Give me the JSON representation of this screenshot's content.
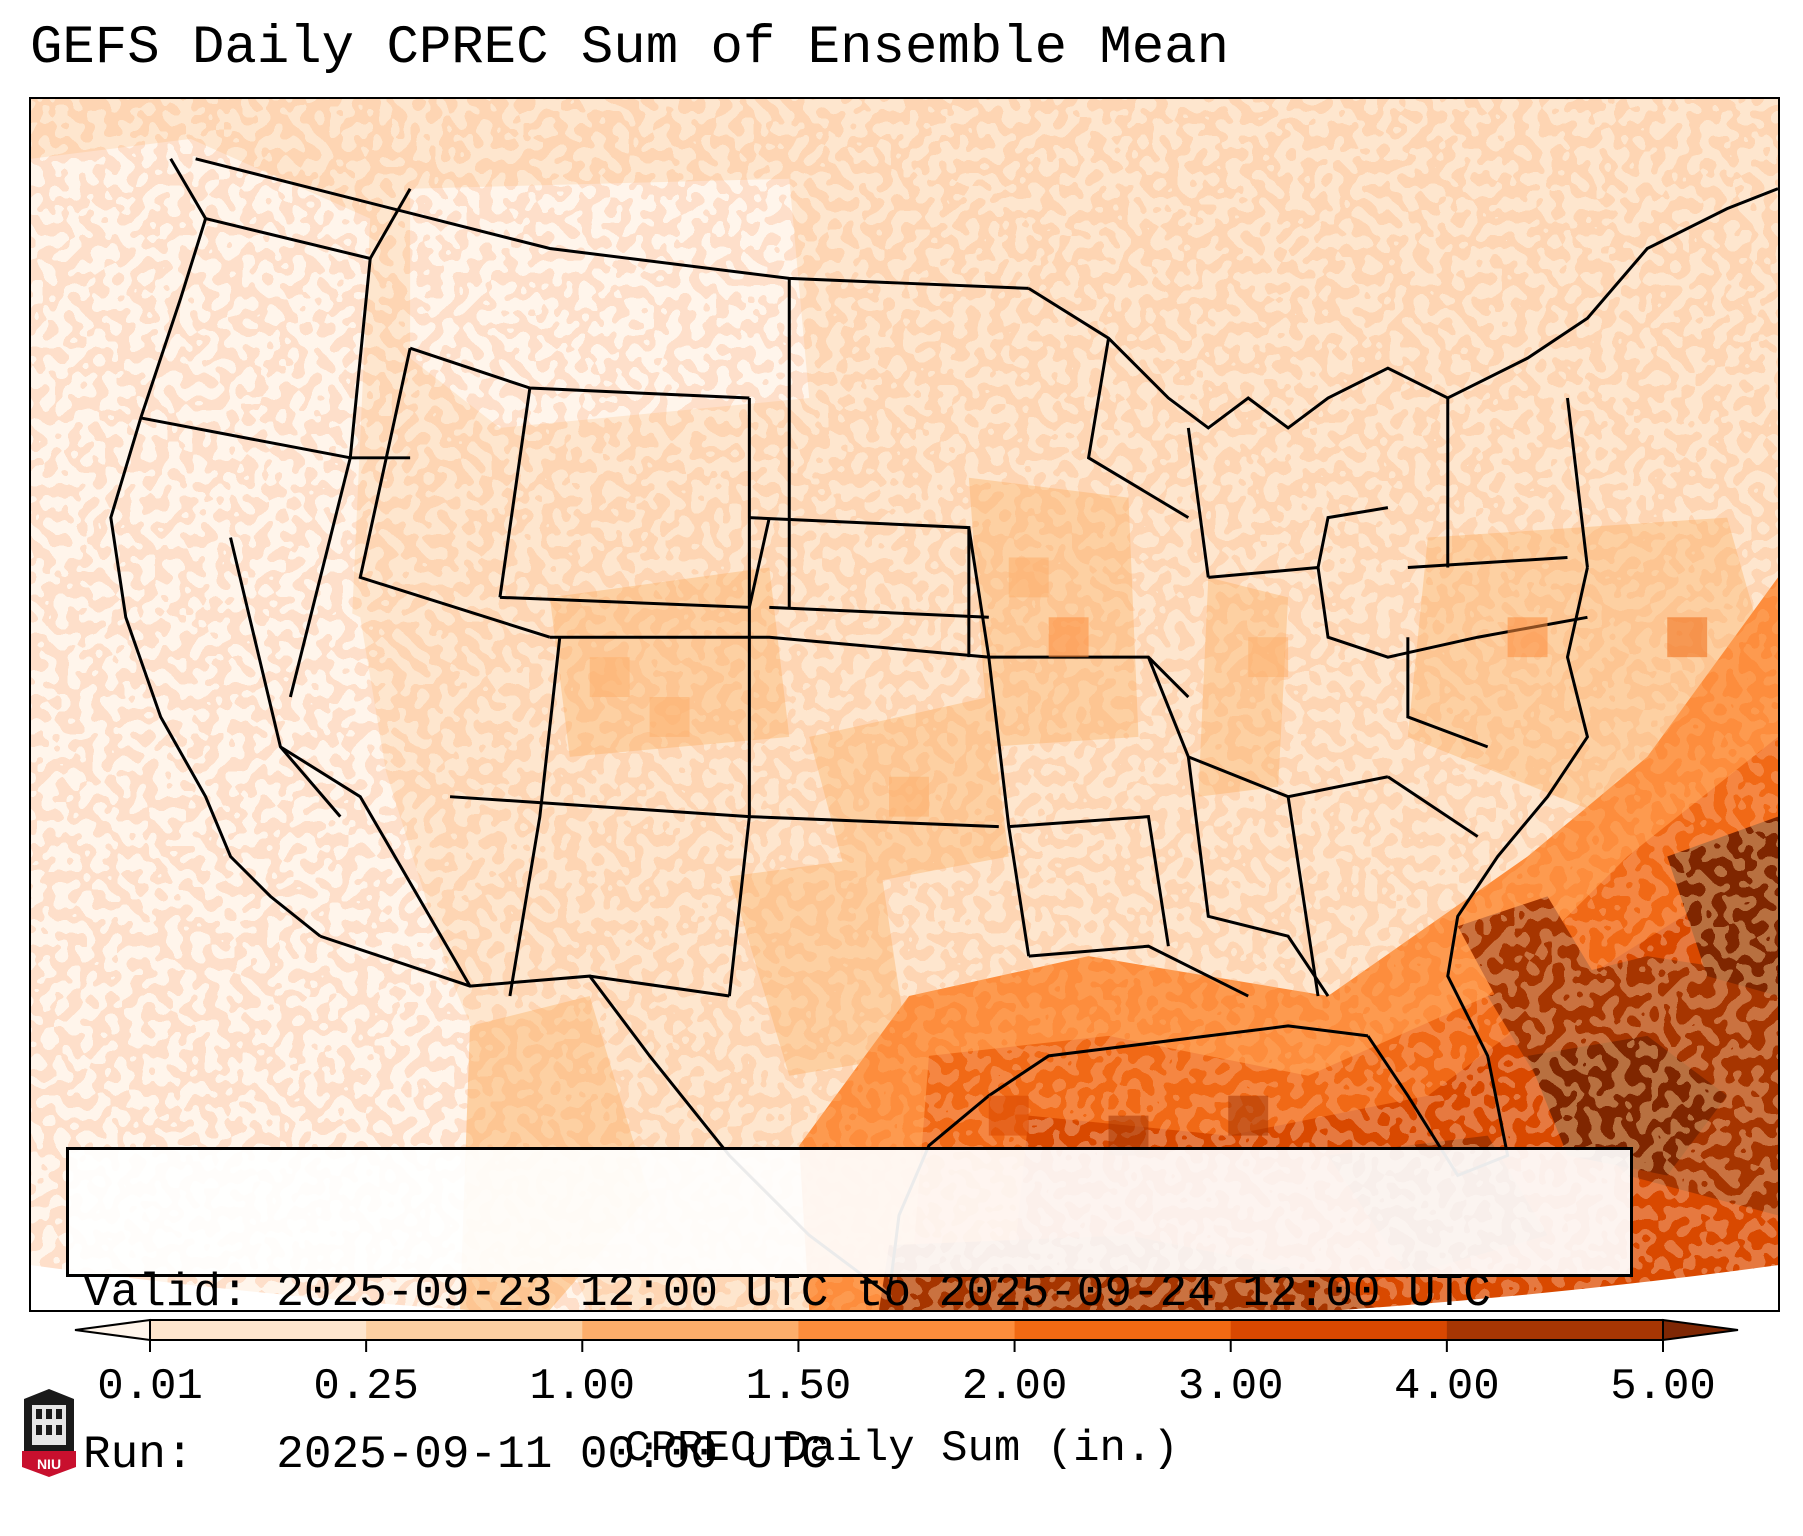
{
  "title": "GEFS Daily CPREC Sum of Ensemble Mean",
  "info": {
    "valid_label": "Valid:",
    "valid_value": "2025-09-23 12:00 UTC to 2025-09-24 12:00 UTC",
    "run_label": "Run:",
    "run_value": "2025-09-11 00:00 UTC"
  },
  "colorbar": {
    "label": "CPREC Daily Sum (in.)",
    "ticks": [
      "0.01",
      "0.25",
      "1.00",
      "1.50",
      "2.00",
      "3.00",
      "4.00",
      "5.00"
    ],
    "colors": [
      "#fff5eb",
      "#fee6ce",
      "#fdd0a2",
      "#fdae6b",
      "#fd8d3c",
      "#f16913",
      "#d94801",
      "#a63603",
      "#7f2704"
    ],
    "extend": "both"
  },
  "logo": {
    "text": "NIU",
    "icon": "niu-tower-logo-icon",
    "color": "#c8102e"
  },
  "map": {
    "region": "Continental United States",
    "basemap": "state-and-coastline-outlines"
  }
}
